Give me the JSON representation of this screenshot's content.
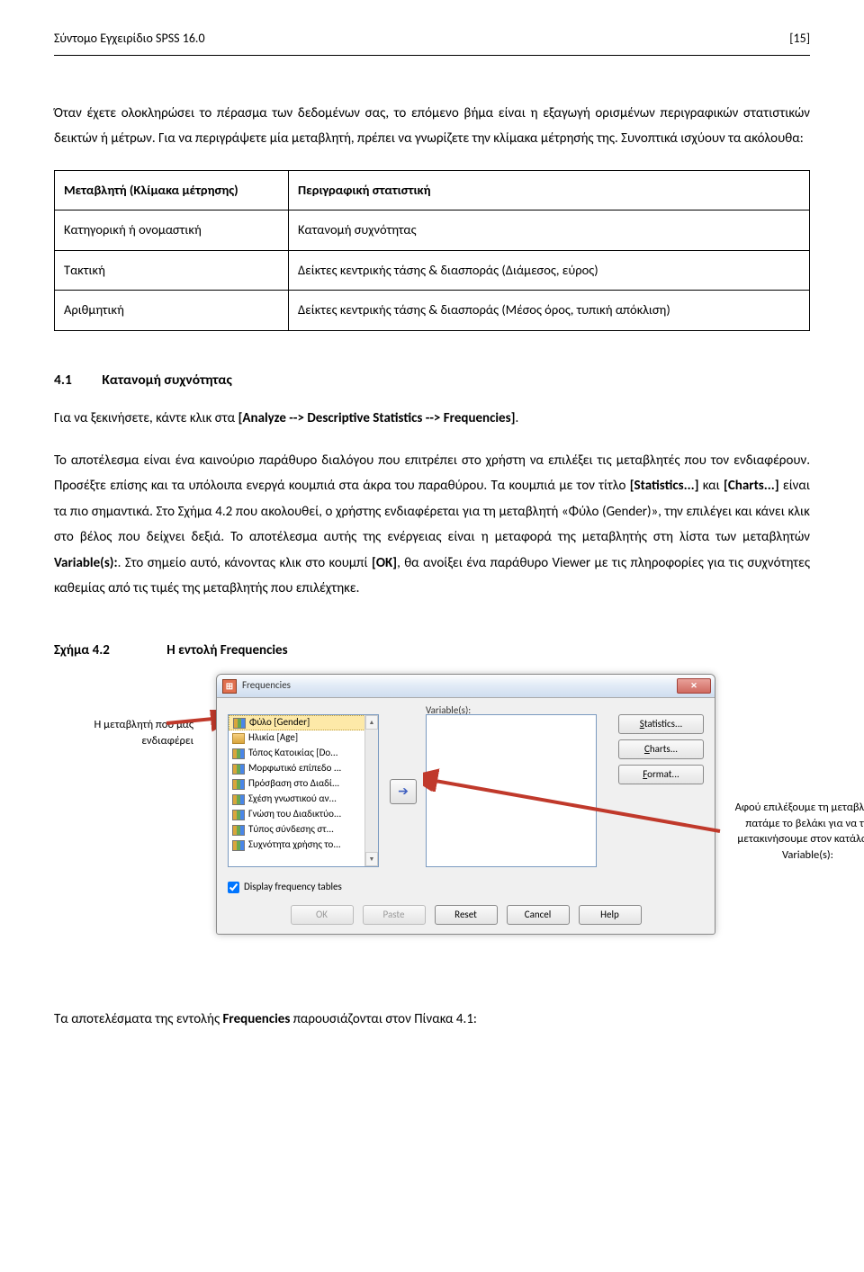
{
  "header": {
    "left": "Σύντομο Εγχειρίδιο SPSS 16.0",
    "right": "[15]"
  },
  "para1": "Όταν έχετε ολοκληρώσει το πέρασμα των δεδομένων σας, το επόμενο βήμα είναι η εξαγωγή ορισμένων περιγραφικών στατιστικών δεικτών ή μέτρων. Για να περιγράψετε μία μεταβλητή, πρέπει να γνωρίζετε την κλίμακα μέτρησής της. Συνοπτικά ισχύουν τα ακόλουθα:",
  "table": {
    "rows": [
      [
        "Μεταβλητή (Κλίμακα μέτρησης)",
        "Περιγραφική στατιστική"
      ],
      [
        "Κατηγορική ή ονομαστική",
        "Κατανομή συχνότητας"
      ],
      [
        "Τακτική",
        "Δείκτες κεντρικής τάσης & διασποράς (Διάμεσος, εύρος)"
      ],
      [
        "Αριθμητική",
        "Δείκτες κεντρικής τάσης & διασποράς (Μέσος όρος, τυπική απόκλιση)"
      ]
    ]
  },
  "section": {
    "num": "4.1",
    "title": "Κατανομή συχνότητας"
  },
  "para2a": "Για να ξεκινήσετε, κάντε κλικ στα ",
  "para2b": "[Analyze --> Descriptive Statistics --> Frequencies]",
  "para2c": ".",
  "para3a": "Το αποτέλεσμα είναι ένα καινούριο παράθυρο διαλόγου που επιτρέπει στο χρήστη να επιλέξει τις μεταβλητές που τον ενδιαφέρουν. Προσέξτε επίσης και τα υπόλοιπα ενεργά κουμπιά στα άκρα του παραθύρου. Τα κουμπιά με τον τίτλο ",
  "para3b": "[Statistics...]",
  "para3c": " και ",
  "para3d": "[Charts...]",
  "para3e": " είναι τα πιο σημαντικά. Στο Σχήμα 4.2 που ακολουθεί, ο χρήστης ενδιαφέρεται για τη μεταβλητή «Φύλο (Gender)», την επιλέγει και κάνει κλικ στο βέλος που δείχνει δεξιά. Το αποτέλεσμα αυτής της ενέργειας είναι η μεταφορά της μεταβλητής στη λίστα των μεταβλητών ",
  "para3f": "Variable(s):",
  "para3g": ". Στο σημείο αυτό, κάνοντας κλικ στο κουμπί ",
  "para3h": "[OK]",
  "para3i": ", θα ανοίξει ένα παράθυρο Viewer με τις πληροφορίες για τις συχνότητες καθεμίας από τις τιμές της μεταβλητής που επιλέχτηκε.",
  "figure": {
    "num": "Σχήμα 4.2",
    "title": "Η εντολή Frequencies"
  },
  "dialog": {
    "title": "Frequencies",
    "sel_label": "Variable(s):",
    "vars": [
      {
        "label": "Φύλο [Gender]",
        "icon": "nom",
        "sel": true
      },
      {
        "label": "Ηλικία [Age]",
        "icon": "sca",
        "sel": false
      },
      {
        "label": "Τόπος Κατοικίας [Do...",
        "icon": "nom",
        "sel": false
      },
      {
        "label": "Μορφωτικό επίπεδο ...",
        "icon": "nom",
        "sel": false
      },
      {
        "label": "Πρόσβαση στο Διαδί...",
        "icon": "nom",
        "sel": false
      },
      {
        "label": "Σχέση γνωστικού αν...",
        "icon": "nom",
        "sel": false
      },
      {
        "label": "Γνώση του Διαδικτύο...",
        "icon": "nom",
        "sel": false
      },
      {
        "label": "Τύπος σύνδεσης στ...",
        "icon": "nom",
        "sel": false
      },
      {
        "label": "Συχνότητα χρήσης το...",
        "icon": "nom",
        "sel": false
      }
    ],
    "side_buttons": [
      "Statistics...",
      "Charts...",
      "Format..."
    ],
    "checkbox": "Display frequency tables",
    "bottom": [
      {
        "label": "OK",
        "disabled": true
      },
      {
        "label": "Paste",
        "disabled": true
      },
      {
        "label": "Reset",
        "disabled": false
      },
      {
        "label": "Cancel",
        "disabled": false
      },
      {
        "label": "Help",
        "disabled": false
      }
    ],
    "move_glyph": "➔"
  },
  "annotLeft": "Η μεταβλητή που μας ενδιαφέρει",
  "annotRight": "Αφού επιλέξουμε τη μεταβλητή πατάμε το βελάκι για να τη μετακινήσουμε στον κατάλογο Variable(s):",
  "footer": "Τα αποτελέσματα της εντολής Frequencies παρουσιάζονται στον Πίνακα 4.1:",
  "footerBold": "Frequencies"
}
